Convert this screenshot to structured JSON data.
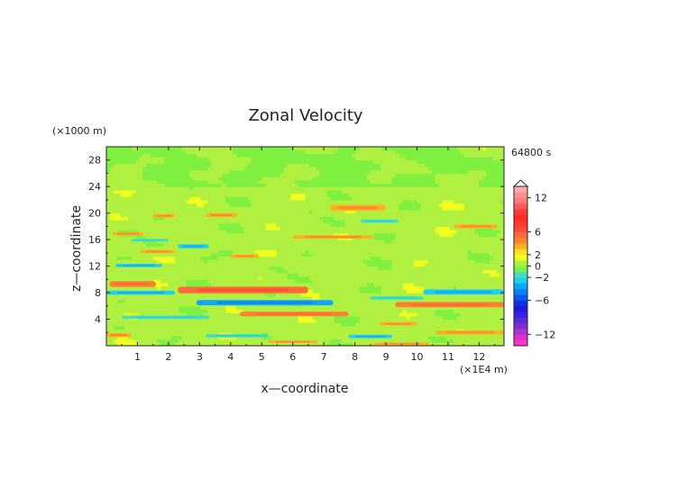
{
  "chart_data": {
    "type": "heatmap",
    "title": "Zonal Velocity",
    "xlabel": "x—coordinate",
    "ylabel": "z—coordinate",
    "x_unit": "(×1E4 m)",
    "y_unit": "(×1000 m)",
    "time_label": "64800 s",
    "xlim": [
      0,
      12.8
    ],
    "ylim": [
      0,
      30
    ],
    "x_ticks": [
      "1",
      "2",
      "3",
      "4",
      "5",
      "6",
      "7",
      "8",
      "9",
      "10",
      "11",
      "12"
    ],
    "x_tick_values": [
      1,
      2,
      3,
      4,
      5,
      6,
      7,
      8,
      9,
      10,
      11,
      12
    ],
    "y_ticks": [
      "4",
      "8",
      "12",
      "16",
      "20",
      "24",
      "28"
    ],
    "y_tick_values": [
      4,
      8,
      12,
      16,
      20,
      24,
      28
    ],
    "colorbar": {
      "levels": [
        -14,
        -13,
        -12,
        -11,
        -10,
        -9,
        -8,
        -7,
        -6,
        -5,
        -4,
        -3,
        -2,
        -1,
        0,
        1,
        2,
        3,
        4,
        5,
        6,
        7,
        8,
        9,
        10,
        11,
        12,
        13,
        14
      ],
      "colors": [
        "#ff33cc",
        "#dd33cc",
        "#aa33cc",
        "#7a2ed0",
        "#5a28d4",
        "#3a20dc",
        "#1e18e0",
        "#1030e8",
        "#0a58f0",
        "#0a80f8",
        "#10a8ff",
        "#20d0f0",
        "#40e0c0",
        "#80f040",
        "#b0f040",
        "#f0ff20",
        "#ffe020",
        "#ffb020",
        "#ff8030",
        "#ff6a3a",
        "#ff4a3a",
        "#ff3a2a",
        "#ff2a2a",
        "#ff3a3a",
        "#ff5a5a",
        "#ff7a7a",
        "#ff9090",
        "#ffa8a8"
      ],
      "tick_labels": [
        "12",
        "6",
        "2",
        "0",
        "−2",
        "−6",
        "−12"
      ],
      "tick_values": [
        12,
        6,
        2,
        0,
        -2,
        -6,
        -12
      ]
    },
    "bands": [
      {
        "z": 20.8,
        "x0": 7.2,
        "x1": 9.0,
        "u": 3.0,
        "w": 0.9
      },
      {
        "z": 19.7,
        "x0": 3.2,
        "x1": 4.2,
        "u": 3.0,
        "w": 0.6
      },
      {
        "z": 19.6,
        "x0": 1.5,
        "x1": 2.2,
        "u": 3.0,
        "w": 0.5
      },
      {
        "z": 18.8,
        "x0": 8.2,
        "x1": 9.4,
        "u": -2.0,
        "w": 0.5
      },
      {
        "z": 18.0,
        "x0": 11.2,
        "x1": 12.6,
        "u": 3.0,
        "w": 0.6
      },
      {
        "z": 16.9,
        "x0": 0.2,
        "x1": 1.2,
        "u": 3.0,
        "w": 0.5
      },
      {
        "z": 16.4,
        "x0": 6.0,
        "x1": 8.6,
        "u": 3.0,
        "w": 0.5
      },
      {
        "z": 15.9,
        "x0": 0.8,
        "x1": 2.0,
        "u": -2.0,
        "w": 0.4
      },
      {
        "z": 15.0,
        "x0": 2.3,
        "x1": 3.3,
        "u": -2.5,
        "w": 0.6
      },
      {
        "z": 14.2,
        "x0": 1.1,
        "x1": 2.2,
        "u": 3.0,
        "w": 0.5
      },
      {
        "z": 13.5,
        "x0": 4.0,
        "x1": 4.9,
        "u": 3.0,
        "w": 0.5
      },
      {
        "z": 12.1,
        "x0": 0.3,
        "x1": 1.8,
        "u": -2.5,
        "w": 0.5
      },
      {
        "z": 9.3,
        "x0": 0.1,
        "x1": 1.6,
        "u": 4.0,
        "w": 0.9
      },
      {
        "z": 8.4,
        "x0": 2.3,
        "x1": 6.5,
        "u": 5.0,
        "w": 1.0
      },
      {
        "z": 8.1,
        "x0": 10.2,
        "x1": 12.8,
        "u": -2.5,
        "w": 0.8
      },
      {
        "z": 8.0,
        "x0": 0.0,
        "x1": 2.2,
        "u": -3.0,
        "w": 0.6
      },
      {
        "z": 7.2,
        "x0": 8.5,
        "x1": 10.2,
        "u": -2.0,
        "w": 0.5
      },
      {
        "z": 6.5,
        "x0": 2.9,
        "x1": 7.3,
        "u": -3.5,
        "w": 0.8
      },
      {
        "z": 6.2,
        "x0": 9.3,
        "x1": 12.8,
        "u": 4.0,
        "w": 0.8
      },
      {
        "z": 4.8,
        "x0": 4.3,
        "x1": 7.8,
        "u": 4.0,
        "w": 0.7
      },
      {
        "z": 4.3,
        "x0": 0.5,
        "x1": 3.3,
        "u": -2.0,
        "w": 0.5
      },
      {
        "z": 3.3,
        "x0": 8.8,
        "x1": 10.0,
        "u": 3.5,
        "w": 0.5
      },
      {
        "z": 2.0,
        "x0": 10.6,
        "x1": 12.8,
        "u": 3.0,
        "w": 0.6
      },
      {
        "z": 1.6,
        "x0": 0.0,
        "x1": 0.8,
        "u": 3.0,
        "w": 0.6
      },
      {
        "z": 1.5,
        "x0": 3.2,
        "x1": 5.2,
        "u": -2.0,
        "w": 0.5
      },
      {
        "z": 1.4,
        "x0": 7.8,
        "x1": 9.2,
        "u": -2.5,
        "w": 0.5
      },
      {
        "z": 0.6,
        "x0": 5.2,
        "x1": 6.8,
        "u": 3.0,
        "w": 0.4
      },
      {
        "z": 0.3,
        "x0": 8.6,
        "x1": 10.4,
        "u": 3.0,
        "w": 0.4
      }
    ]
  }
}
